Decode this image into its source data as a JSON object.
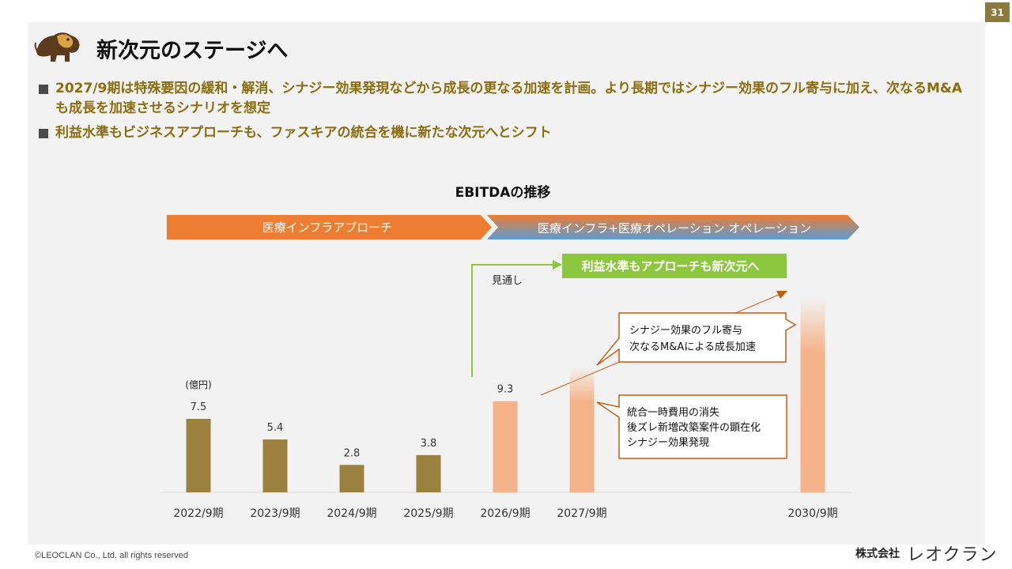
{
  "page": {
    "number": "31",
    "title": "新次元のステージへ"
  },
  "bullets": [
    {
      "text": "2027/9期は特殊要因の緩和・解消、シナジー効果発現などから成長の更なる加速を計画。より長期ではシナジー効果のフル寄与に加え、次なるM&Aも成長を加速させるシナリオを想定"
    },
    {
      "text": "利益水準もビジネスアプローチも、ファスキアの統合を機に新たな次元へとシフト"
    }
  ],
  "chart_data": {
    "type": "bar",
    "title": "EBITDAの推移",
    "ylabel": "(億円)",
    "categories": [
      "2022/9期",
      "2023/9期",
      "2024/9期",
      "2025/9期",
      "2026/9期",
      "2027/9期",
      "2030/9期"
    ],
    "values": [
      7.5,
      5.4,
      2.8,
      3.8,
      9.3,
      null,
      null
    ],
    "value_labels": [
      "7.5",
      "5.4",
      "2.8",
      "3.8",
      "9.3",
      "",
      ""
    ],
    "bar_styles": [
      "actual",
      "actual",
      "actual",
      "actual",
      "forecast",
      "outlook",
      "outlook"
    ],
    "colors": {
      "actual": "#9c803e",
      "forecast": "#f5b38a",
      "arrow_left": "#ed7d31",
      "arrow_right_top": "#ed7d31",
      "arrow_right_bottom": "#5b9bd5",
      "green": "#8dc63f",
      "callout_border": "#c55a11"
    },
    "phases": [
      {
        "label": "医療インフラアプローチ"
      },
      {
        "label": "医療インフラ+医療オペレーション  オペレーション"
      }
    ],
    "annotations": {
      "outlook_label": "見通し",
      "green_box": "利益水準もアプローチも新次元へ",
      "callout_upper": [
        "シナジー効果のフル寄与",
        "次なるM&Aによる成長加速"
      ],
      "callout_lower": [
        "統合一時費用の消失",
        "後ズレ新増改築案件の顕在化",
        "シナジー効果発現"
      ]
    }
  },
  "footer": {
    "copyright": "©LEOCLAN Co., Ltd. all rights reserved",
    "company": "株式会社",
    "brand": "レオクラン"
  }
}
